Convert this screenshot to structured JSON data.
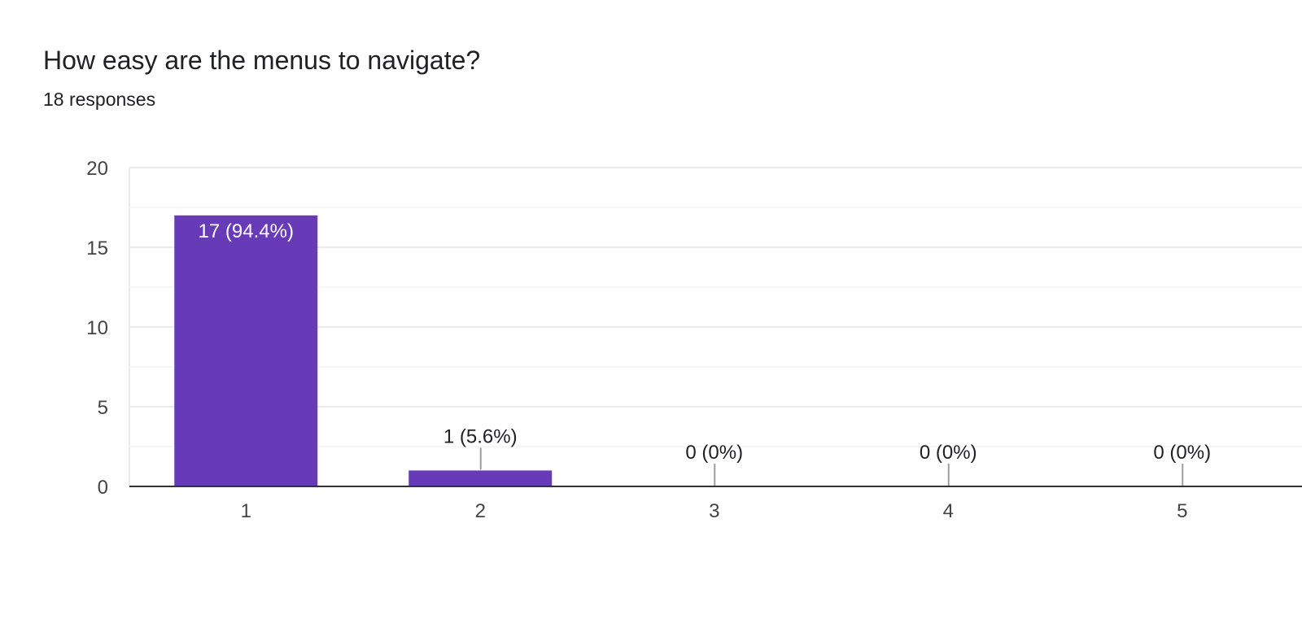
{
  "question": {
    "title": "How easy are the menus to navigate?",
    "response_count": "18 responses"
  },
  "colors": {
    "bar": "#673ab7",
    "bar_label_inside": "#ffffff",
    "bar_label_outside": "#202124",
    "gridline": "#ebebeb",
    "minor_gridline": "#f4f4f4",
    "baseline": "#333333",
    "leader_line": "#9e9e9e",
    "tick_text": "#444444"
  },
  "chart_data": {
    "type": "bar",
    "categories": [
      "1",
      "2",
      "3",
      "4",
      "5"
    ],
    "values": [
      17,
      1,
      0,
      0,
      0
    ],
    "data_labels": [
      "17 (94.4%)",
      "1 (5.6%)",
      "0 (0%)",
      "0 (0%)",
      "0 (0%)"
    ],
    "title": "",
    "xlabel": "",
    "ylabel": "",
    "ylim": [
      0,
      20
    ],
    "yticks": [
      0,
      5,
      10,
      15,
      20
    ],
    "ytick_labels": [
      "0",
      "5",
      "10",
      "15",
      "20"
    ],
    "grid": true,
    "legend": "none"
  }
}
